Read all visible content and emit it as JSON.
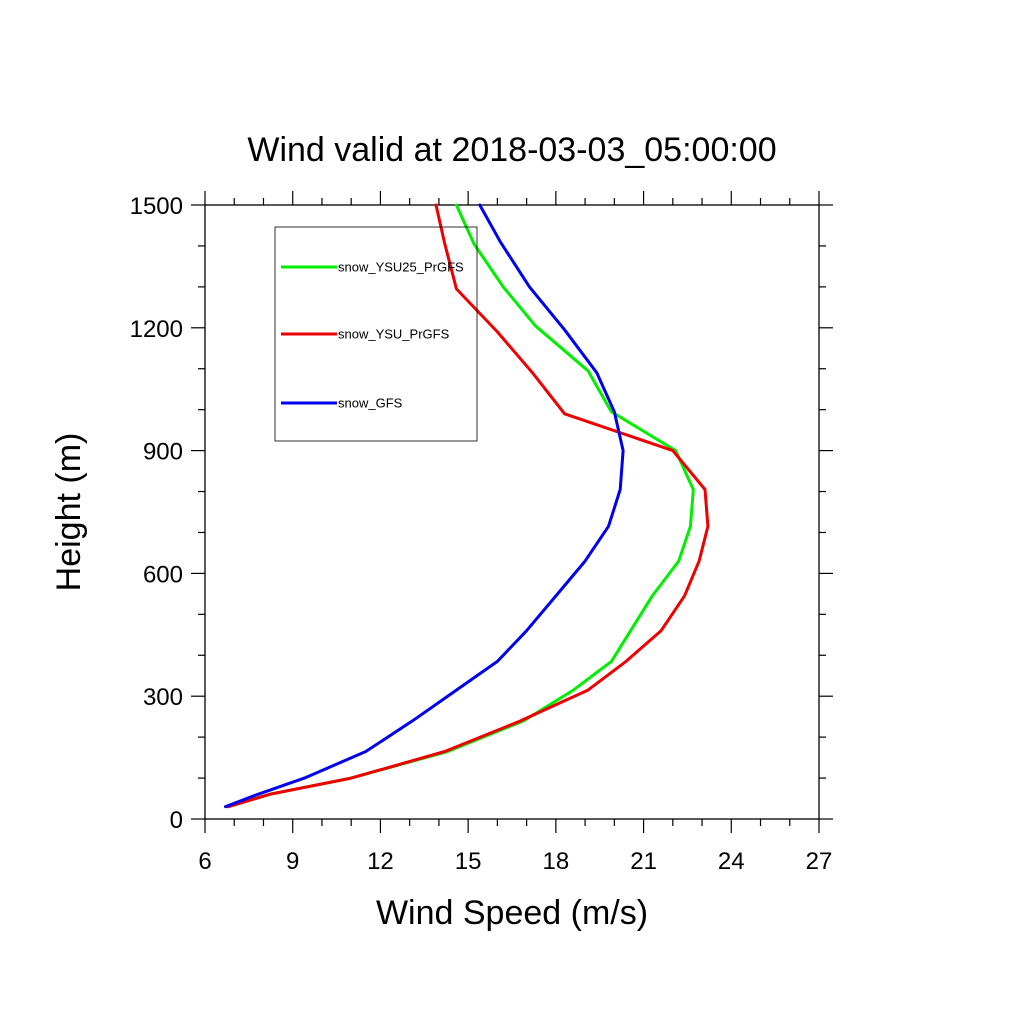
{
  "chart_data": {
    "type": "line",
    "title": "Wind valid at 2018-03-03_05:00:00",
    "xlabel": "Wind Speed (m/s)",
    "ylabel": "Height (m)",
    "xlim": [
      6,
      27
    ],
    "ylim": [
      0,
      1500
    ],
    "xticks": [
      "6",
      "9",
      "12",
      "15",
      "18",
      "21",
      "24",
      "27"
    ],
    "yticks": [
      "0",
      "300",
      "600",
      "900",
      "1200",
      "1500"
    ],
    "grid": false,
    "legend_position": "top-left",
    "series": [
      {
        "name": "snow_YSU25_PrGFS",
        "color": "#00ee00",
        "points": [
          [
            6.8,
            30
          ],
          [
            8.2,
            60
          ],
          [
            11.0,
            100
          ],
          [
            14.3,
            165
          ],
          [
            16.9,
            240
          ],
          [
            18.6,
            315
          ],
          [
            19.9,
            385
          ],
          [
            21.3,
            545
          ],
          [
            22.2,
            630
          ],
          [
            22.6,
            715
          ],
          [
            22.7,
            805
          ],
          [
            22.1,
            900
          ],
          [
            19.9,
            995
          ],
          [
            19.1,
            1095
          ],
          [
            17.3,
            1205
          ],
          [
            16.2,
            1300
          ],
          [
            15.2,
            1405
          ],
          [
            14.6,
            1500
          ]
        ]
      },
      {
        "name": "snow_YSU_PrGFS",
        "color": "#ee0000",
        "points": [
          [
            6.8,
            30
          ],
          [
            8.2,
            60
          ],
          [
            11.0,
            100
          ],
          [
            14.2,
            165
          ],
          [
            16.8,
            240
          ],
          [
            19.1,
            315
          ],
          [
            20.4,
            385
          ],
          [
            21.6,
            460
          ],
          [
            22.4,
            545
          ],
          [
            22.9,
            630
          ],
          [
            23.2,
            715
          ],
          [
            23.1,
            805
          ],
          [
            22.0,
            900
          ],
          [
            18.3,
            990
          ],
          [
            17.2,
            1090
          ],
          [
            16.0,
            1190
          ],
          [
            14.6,
            1295
          ],
          [
            14.2,
            1405
          ],
          [
            13.9,
            1500
          ]
        ]
      },
      {
        "name": "snow_GFS",
        "color": "#0000ee",
        "points": [
          [
            6.7,
            30
          ],
          [
            7.8,
            60
          ],
          [
            9.4,
            100
          ],
          [
            11.5,
            165
          ],
          [
            13.1,
            240
          ],
          [
            14.6,
            315
          ],
          [
            16.0,
            385
          ],
          [
            17.0,
            460
          ],
          [
            18.0,
            545
          ],
          [
            19.0,
            630
          ],
          [
            19.8,
            715
          ],
          [
            20.2,
            805
          ],
          [
            20.3,
            900
          ],
          [
            20.0,
            995
          ],
          [
            19.4,
            1090
          ],
          [
            18.3,
            1195
          ],
          [
            17.1,
            1300
          ],
          [
            16.1,
            1410
          ],
          [
            15.4,
            1500
          ]
        ]
      }
    ]
  }
}
